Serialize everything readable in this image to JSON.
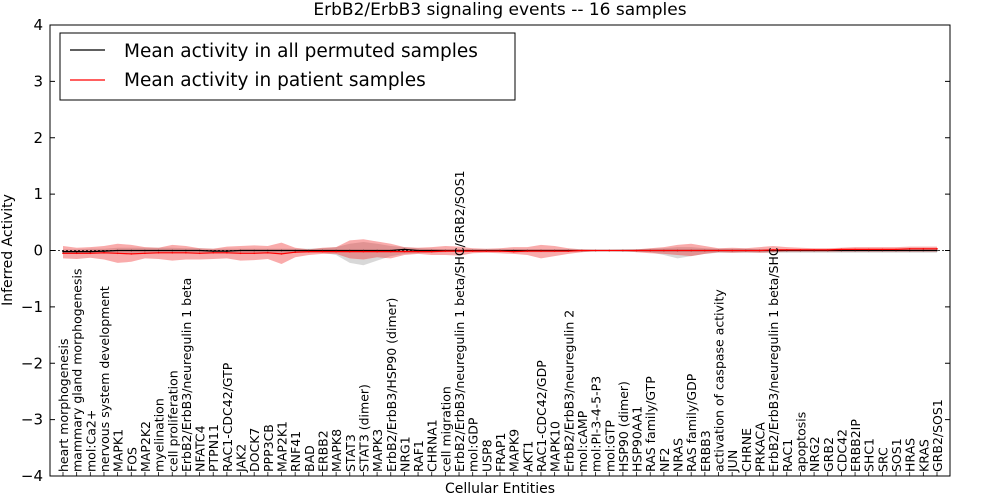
{
  "chart_data": {
    "type": "line",
    "title": "ErbB2/ErbB3 signaling events -- 16 samples",
    "xlabel": "Cellular Entities",
    "ylabel": "Inferred Activity",
    "ylim": [
      -4,
      4
    ],
    "yticks": [
      -4,
      -3,
      -2,
      -1,
      0,
      1,
      2,
      3,
      4
    ],
    "ytick_labels": [
      "−4",
      "−3",
      "−2",
      "−1",
      "0",
      "1",
      "2",
      "3",
      "4"
    ],
    "legend_position": "top-left",
    "categories": [
      "heart morphogenesis",
      "mammary gland morphogenesis",
      "mol:Ca2+",
      "nervous system development",
      "MAPK1",
      "FOS",
      "MAP2K2",
      "myelination",
      "cell proliferation",
      "ErbB2/ErbB3/neuregulin 1 beta",
      "NFATC4",
      "PTPN11",
      "RAC1-CDC42/GTP",
      "JAK2",
      "DOCK7",
      "PPP3CB",
      "MAP2K1",
      "RNF41",
      "BAD",
      "ERBB2",
      "MAPK8",
      "STAT3",
      "STAT3 (dimer)",
      "MAPK3",
      "ErbB2/ErbB3/HSP90 (dimer)",
      "NRG1",
      "RAF1",
      "CHRNA1",
      "cell migration",
      "ErbB2/ErbB3/neuregulin 1 beta/SHC/GRB2/SOS1",
      "mol:GDP",
      "USP8",
      "FRAP1",
      "MAPK9",
      "AKT1",
      "RAC1-CDC42/GDP",
      "MAPK10",
      "ErbB2/ErbB3/neuregulin 2",
      "mol:cAMP",
      "mol:PI-3-4-5-P3",
      "mol:GTP",
      "HSP90 (dimer)",
      "HSP90AA1",
      "RAS family/GTP",
      "NF2",
      "NRAS",
      "RAS family/GDP",
      "ERBB3",
      "activation of caspase activity",
      "JUN",
      "CHRNE",
      "PRKACA",
      "ErbB2/ErbB3/neuregulin 1 beta/SHC",
      "RAC1",
      "apoptosis",
      "NRG2",
      "GRB2",
      "CDC42",
      "ERBB2IP",
      "SHC1",
      "SRC",
      "SOS1",
      "HRAS",
      "KRAS",
      "GRB2/SOS1"
    ],
    "series": [
      {
        "name": "Mean activity in all permuted samples",
        "color": "#000000",
        "values": [
          -0.02,
          -0.02,
          -0.02,
          -0.01,
          0.0,
          0.0,
          0.0,
          0.0,
          0.0,
          0.0,
          0.0,
          -0.01,
          -0.01,
          0.0,
          0.0,
          0.0,
          0.0,
          0.0,
          0.0,
          0.0,
          0.0,
          0.0,
          0.0,
          0.0,
          0.0,
          0.02,
          0.0,
          0.0,
          0.0,
          0.0,
          0.0,
          0.0,
          0.0,
          0.0,
          0.0,
          0.0,
          0.0,
          0.0,
          0.0,
          0.0,
          0.0,
          0.0,
          0.0,
          0.0,
          0.0,
          0.0,
          0.0,
          0.0,
          0.0,
          0.0,
          0.0,
          0.0,
          0.0,
          0.0,
          0.0,
          0.0,
          0.0,
          0.0,
          0.0,
          0.0,
          0.0,
          0.0,
          0.0,
          0.0,
          0.0
        ],
        "band_upper": [
          0.02,
          0.02,
          0.03,
          0.03,
          0.05,
          0.05,
          0.05,
          0.05,
          0.05,
          0.04,
          0.04,
          0.03,
          0.03,
          0.03,
          0.03,
          0.03,
          0.03,
          0.03,
          0.03,
          0.04,
          0.06,
          0.12,
          0.15,
          0.12,
          0.08,
          0.06,
          0.04,
          0.03,
          0.02,
          0.02,
          0.02,
          0.02,
          0.02,
          0.02,
          0.02,
          0.02,
          0.02,
          0.02,
          0.01,
          0.01,
          0.01,
          0.02,
          0.02,
          0.03,
          0.04,
          0.06,
          0.06,
          0.04,
          0.03,
          0.03,
          0.03,
          0.02,
          0.02,
          0.02,
          0.02,
          0.02,
          0.02,
          0.02,
          0.02,
          0.02,
          0.02,
          0.02,
          0.02,
          0.02,
          0.02
        ],
        "band_lower": [
          -0.06,
          -0.06,
          -0.05,
          -0.05,
          -0.06,
          -0.06,
          -0.06,
          -0.05,
          -0.05,
          -0.05,
          -0.05,
          -0.05,
          -0.05,
          -0.05,
          -0.05,
          -0.05,
          -0.05,
          -0.04,
          -0.04,
          -0.04,
          -0.08,
          -0.22,
          -0.26,
          -0.18,
          -0.1,
          -0.06,
          -0.05,
          -0.04,
          -0.03,
          -0.02,
          -0.02,
          -0.02,
          -0.02,
          -0.03,
          -0.03,
          -0.03,
          -0.03,
          -0.02,
          -0.02,
          -0.01,
          -0.01,
          -0.02,
          -0.02,
          -0.03,
          -0.08,
          -0.14,
          -0.1,
          -0.06,
          -0.04,
          -0.04,
          -0.04,
          -0.04,
          -0.04,
          -0.04,
          -0.04,
          -0.04,
          -0.04,
          -0.04,
          -0.04,
          -0.04,
          -0.04,
          -0.04,
          -0.04,
          -0.04,
          -0.04
        ]
      },
      {
        "name": "Mean activity in patient samples",
        "color": "#ff0000",
        "values": [
          -0.05,
          -0.05,
          -0.05,
          -0.04,
          -0.05,
          -0.06,
          -0.05,
          -0.04,
          -0.04,
          -0.04,
          -0.05,
          -0.04,
          -0.04,
          -0.05,
          -0.05,
          -0.04,
          -0.06,
          -0.03,
          -0.02,
          -0.02,
          -0.02,
          -0.02,
          -0.02,
          -0.02,
          -0.02,
          -0.02,
          -0.02,
          -0.02,
          -0.01,
          -0.01,
          -0.01,
          -0.01,
          -0.01,
          -0.02,
          -0.01,
          -0.01,
          -0.01,
          -0.01,
          0.0,
          0.0,
          0.0,
          0.0,
          0.0,
          0.0,
          0.0,
          0.0,
          0.0,
          0.0,
          0.0,
          0.0,
          0.0,
          0.0,
          0.01,
          0.01,
          0.01,
          0.01,
          0.01,
          0.02,
          0.02,
          0.02,
          0.02,
          0.02,
          0.03,
          0.03,
          0.03
        ],
        "band_upper": [
          0.08,
          0.05,
          0.06,
          0.08,
          0.12,
          0.1,
          0.06,
          0.05,
          0.1,
          0.08,
          0.04,
          0.03,
          0.07,
          0.08,
          0.09,
          0.08,
          0.14,
          0.05,
          0.02,
          0.05,
          0.06,
          0.18,
          0.2,
          0.16,
          0.12,
          0.06,
          0.05,
          0.06,
          0.08,
          0.07,
          0.04,
          0.03,
          0.04,
          0.06,
          0.06,
          0.1,
          0.08,
          0.04,
          0.02,
          0.01,
          0.01,
          0.01,
          0.02,
          0.04,
          0.06,
          0.1,
          0.12,
          0.08,
          0.04,
          0.05,
          0.04,
          0.06,
          0.08,
          0.06,
          0.05,
          0.04,
          0.04,
          0.05,
          0.06,
          0.06,
          0.06,
          0.06,
          0.07,
          0.07,
          0.07
        ],
        "band_lower": [
          -0.14,
          -0.15,
          -0.13,
          -0.16,
          -0.22,
          -0.2,
          -0.14,
          -0.15,
          -0.18,
          -0.16,
          -0.16,
          -0.15,
          -0.14,
          -0.18,
          -0.17,
          -0.15,
          -0.24,
          -0.12,
          -0.08,
          -0.06,
          -0.06,
          -0.14,
          -0.16,
          -0.12,
          -0.14,
          -0.08,
          -0.06,
          -0.08,
          -0.08,
          -0.09,
          -0.05,
          -0.04,
          -0.05,
          -0.06,
          -0.08,
          -0.14,
          -0.1,
          -0.06,
          -0.03,
          -0.01,
          -0.01,
          -0.01,
          -0.03,
          -0.05,
          -0.06,
          -0.08,
          -0.1,
          -0.06,
          -0.03,
          -0.04,
          -0.03,
          -0.04,
          -0.03,
          -0.02,
          -0.02,
          -0.02,
          -0.02,
          -0.02,
          -0.02,
          -0.02,
          -0.02,
          -0.02,
          -0.02,
          -0.02,
          -0.02
        ]
      }
    ]
  }
}
